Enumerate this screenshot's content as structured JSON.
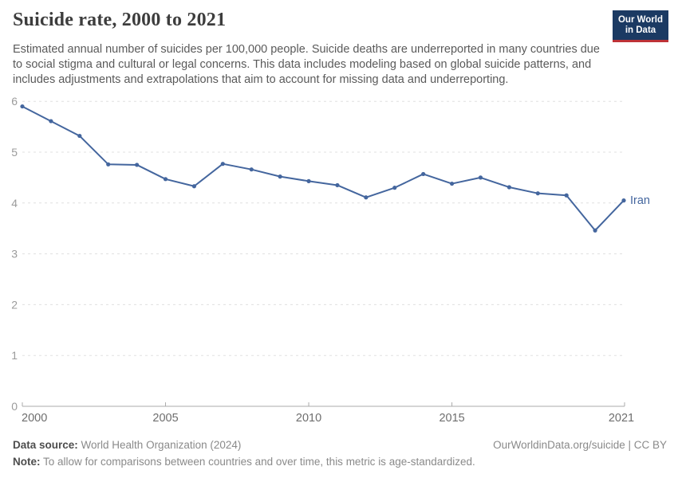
{
  "header": {
    "title": "Suicide rate, 2000 to 2021",
    "subtitle": "Estimated annual number of suicides per 100,000 people. Suicide deaths are underreported in many countries due to social stigma and cultural or legal concerns. This data includes modeling based on global suicide patterns, and includes adjustments and extrapolations that aim to account for missing data and underreporting.",
    "logo": {
      "line1": "Our World",
      "line2": "in Data",
      "background_color": "#1b3a63",
      "stripe_color": "#be3237"
    }
  },
  "chart_data": {
    "type": "line",
    "title": "Suicide rate, 2000 to 2021",
    "x": [
      2000,
      2001,
      2002,
      2003,
      2004,
      2005,
      2006,
      2007,
      2008,
      2009,
      2010,
      2011,
      2012,
      2013,
      2014,
      2015,
      2016,
      2017,
      2018,
      2019,
      2020,
      2021
    ],
    "series": [
      {
        "name": "Iran",
        "color": "#44669e",
        "values": [
          5.9,
          5.61,
          5.32,
          4.76,
          4.75,
          4.47,
          4.33,
          4.77,
          4.66,
          4.52,
          4.43,
          4.35,
          4.11,
          4.3,
          4.57,
          4.38,
          4.5,
          4.31,
          4.19,
          4.15,
          3.46,
          4.05
        ]
      }
    ],
    "xlim": [
      2000,
      2021
    ],
    "ylim": [
      0,
      6
    ],
    "x_ticks": [
      2000,
      2005,
      2010,
      2015,
      2021
    ],
    "y_ticks": [
      0,
      1,
      2,
      3,
      4,
      5,
      6
    ],
    "grid": "horizontal-dashed",
    "legend_position": "end-of-line-label",
    "colors": {
      "gridline": "#e0e0e0",
      "axis": "#ababab",
      "y_tick_label": "#9b9b9b",
      "x_tick_label": "#6e6e6e"
    }
  },
  "footer": {
    "data_source_label": "Data source:",
    "data_source_value": " World Health Organization (2024)",
    "attribution": "OurWorldinData.org/suicide | CC BY",
    "note_label": "Note:",
    "note_value": " To allow for comparisons between countries and over time, this metric is age-standardized."
  }
}
